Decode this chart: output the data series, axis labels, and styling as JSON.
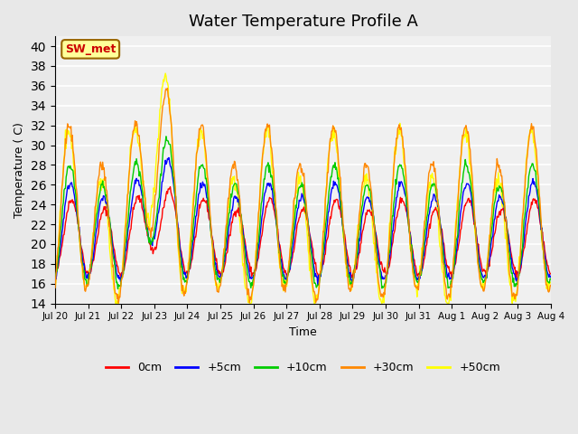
{
  "title": "Water Temperature Profile A",
  "xlabel": "Time",
  "ylabel": "Temperature ( C)",
  "ylim": [
    14,
    41
  ],
  "yticks": [
    14,
    16,
    18,
    20,
    22,
    24,
    26,
    28,
    30,
    32,
    34,
    36,
    38,
    40
  ],
  "bg_color": "#e8e8e8",
  "plot_bg": "#f0f0f0",
  "annotation_text": "SW_met",
  "annotation_fg": "#cc0000",
  "annotation_bg": "#ffff99",
  "annotation_border": "#996600",
  "colors": {
    "0cm": "#ff0000",
    "+5cm": "#0000ff",
    "+10cm": "#00cc00",
    "+30cm": "#ff8800",
    "+50cm": "#ffff00"
  },
  "legend_labels": [
    "0cm",
    "+5cm",
    "+10cm",
    "+30cm",
    "+50cm"
  ],
  "n_days": 15,
  "x_tick_labels": [
    "Jul 20",
    "Jul 21",
    "Jul 22",
    "Jul 23",
    "Jul 24",
    "Jul 25",
    "Jul 26",
    "Jul 27",
    "Jul 28",
    "Jul 29",
    "Jul 30",
    "Jul 31",
    "Aug 1",
    "Aug 2",
    "Aug 3",
    "Aug 4"
  ]
}
